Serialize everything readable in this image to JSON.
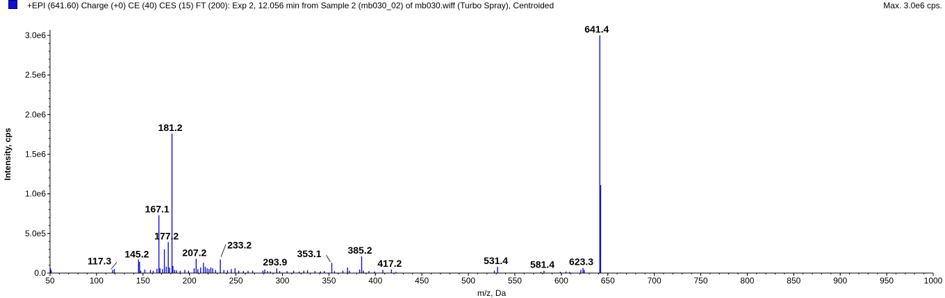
{
  "header": {
    "legend_color": "#1010d0",
    "title": "+EPI (641.60) Charge (+0) CE (40) CES (15) FT (200): Exp 2, 12.056 min from Sample 2 (mb030_02) of mb030.wiff (Turbo Spray), Centroided",
    "max_intensity": "Max. 3.0e6 cps."
  },
  "chart_data": {
    "type": "bar",
    "xlabel": "m/z, Da",
    "ylabel": "Intensity, cps",
    "xlim": [
      50,
      1000
    ],
    "ylim": [
      0,
      3000000
    ],
    "x_ticks": [
      50,
      100,
      150,
      200,
      250,
      300,
      350,
      400,
      450,
      500,
      550,
      600,
      650,
      700,
      750,
      800,
      850,
      900,
      950,
      1000
    ],
    "y_ticks": [
      {
        "value": 0,
        "label": "0.0"
      },
      {
        "value": 500000,
        "label": "5.0e5"
      },
      {
        "value": 1000000,
        "label": "1.0e6"
      },
      {
        "value": 1500000,
        "label": "1.5e6"
      },
      {
        "value": 2000000,
        "label": "2.0e6"
      },
      {
        "value": 2500000,
        "label": "2.5e6"
      },
      {
        "value": 3000000,
        "label": "3.0e6"
      }
    ],
    "color": "#1010d0",
    "peaks": [
      {
        "mz": 50.5,
        "intensity": 60000
      },
      {
        "mz": 51.3,
        "intensity": 35000
      },
      {
        "mz": 117.3,
        "intensity": 40000,
        "label": "117.3"
      },
      {
        "mz": 119.1,
        "intensity": 50000
      },
      {
        "mz": 145.2,
        "intensity": 170000,
        "label": "145.2"
      },
      {
        "mz": 146.3,
        "intensity": 140000
      },
      {
        "mz": 147.5,
        "intensity": 30000
      },
      {
        "mz": 152.0,
        "intensity": 45000
      },
      {
        "mz": 158.0,
        "intensity": 40000
      },
      {
        "mz": 161.0,
        "intensity": 30000
      },
      {
        "mz": 165.0,
        "intensity": 55000
      },
      {
        "mz": 167.1,
        "intensity": 730000,
        "label": "167.1"
      },
      {
        "mz": 168.3,
        "intensity": 60000
      },
      {
        "mz": 171.0,
        "intensity": 50000
      },
      {
        "mz": 173.0,
        "intensity": 300000
      },
      {
        "mz": 175.0,
        "intensity": 80000
      },
      {
        "mz": 177.2,
        "intensity": 390000,
        "label": "177.2"
      },
      {
        "mz": 178.5,
        "intensity": 70000
      },
      {
        "mz": 181.2,
        "intensity": 1760000,
        "label": "181.2"
      },
      {
        "mz": 182.2,
        "intensity": 90000
      },
      {
        "mz": 184.0,
        "intensity": 40000
      },
      {
        "mz": 186.0,
        "intensity": 35000
      },
      {
        "mz": 190.0,
        "intensity": 30000
      },
      {
        "mz": 195.0,
        "intensity": 40000
      },
      {
        "mz": 199.0,
        "intensity": 30000
      },
      {
        "mz": 205.0,
        "intensity": 60000
      },
      {
        "mz": 207.2,
        "intensity": 180000,
        "label": "207.2"
      },
      {
        "mz": 209.0,
        "intensity": 50000
      },
      {
        "mz": 212.0,
        "intensity": 70000
      },
      {
        "mz": 215.0,
        "intensity": 130000
      },
      {
        "mz": 217.0,
        "intensity": 80000
      },
      {
        "mz": 219.0,
        "intensity": 60000
      },
      {
        "mz": 221.0,
        "intensity": 50000
      },
      {
        "mz": 223.0,
        "intensity": 70000
      },
      {
        "mz": 225.0,
        "intensity": 60000
      },
      {
        "mz": 228.0,
        "intensity": 40000
      },
      {
        "mz": 233.2,
        "intensity": 170000,
        "label": "233.2"
      },
      {
        "mz": 237.0,
        "intensity": 40000
      },
      {
        "mz": 241.0,
        "intensity": 35000
      },
      {
        "mz": 245.0,
        "intensity": 50000
      },
      {
        "mz": 249.0,
        "intensity": 60000
      },
      {
        "mz": 253.0,
        "intensity": 30000
      },
      {
        "mz": 258.0,
        "intensity": 25000
      },
      {
        "mz": 263.0,
        "intensity": 30000
      },
      {
        "mz": 268.0,
        "intensity": 30000
      },
      {
        "mz": 279.0,
        "intensity": 30000
      },
      {
        "mz": 281.0,
        "intensity": 45000
      },
      {
        "mz": 284.0,
        "intensity": 25000
      },
      {
        "mz": 287.0,
        "intensity": 20000
      },
      {
        "mz": 293.9,
        "intensity": 60000,
        "label": "293.9"
      },
      {
        "mz": 297.0,
        "intensity": 25000
      },
      {
        "mz": 305.0,
        "intensity": 25000
      },
      {
        "mz": 312.0,
        "intensity": 30000
      },
      {
        "mz": 318.0,
        "intensity": 20000
      },
      {
        "mz": 323.0,
        "intensity": 30000
      },
      {
        "mz": 327.0,
        "intensity": 35000
      },
      {
        "mz": 335.0,
        "intensity": 25000
      },
      {
        "mz": 341.0,
        "intensity": 20000
      },
      {
        "mz": 345.0,
        "intensity": 25000
      },
      {
        "mz": 353.1,
        "intensity": 130000,
        "label": "353.1"
      },
      {
        "mz": 356.0,
        "intensity": 25000
      },
      {
        "mz": 365.0,
        "intensity": 30000
      },
      {
        "mz": 370.0,
        "intensity": 70000
      },
      {
        "mz": 372.0,
        "intensity": 30000
      },
      {
        "mz": 383.0,
        "intensity": 45000
      },
      {
        "mz": 385.2,
        "intensity": 210000,
        "label": "385.2"
      },
      {
        "mz": 387.0,
        "intensity": 30000
      },
      {
        "mz": 393.0,
        "intensity": 25000
      },
      {
        "mz": 399.0,
        "intensity": 20000
      },
      {
        "mz": 408.0,
        "intensity": 40000
      },
      {
        "mz": 417.2,
        "intensity": 45000,
        "label": "417.2"
      },
      {
        "mz": 422.0,
        "intensity": 15000
      },
      {
        "mz": 528.0,
        "intensity": 30000
      },
      {
        "mz": 531.4,
        "intensity": 80000,
        "label": "531.4"
      },
      {
        "mz": 578.0,
        "intensity": 15000
      },
      {
        "mz": 581.4,
        "intensity": 30000,
        "label": "581.4"
      },
      {
        "mz": 599.0,
        "intensity": 15000
      },
      {
        "mz": 605.0,
        "intensity": 20000
      },
      {
        "mz": 609.0,
        "intensity": 15000
      },
      {
        "mz": 621.0,
        "intensity": 40000
      },
      {
        "mz": 623.3,
        "intensity": 65000,
        "label": "623.3"
      },
      {
        "mz": 624.6,
        "intensity": 40000
      },
      {
        "mz": 641.4,
        "intensity": 3000000,
        "label": "641.4"
      },
      {
        "mz": 642.3,
        "intensity": 1110000
      }
    ],
    "annotated_peaks": [
      {
        "mz": 117.3,
        "label": "117.3",
        "intensity": 40000,
        "label_dx": -36,
        "label_dy": -8
      },
      {
        "mz": 145.2,
        "label": "145.2",
        "intensity": 170000,
        "label_dx": -20,
        "label_dy": -3
      },
      {
        "mz": 167.1,
        "label": "167.1",
        "intensity": 730000,
        "label_dx": -20,
        "label_dy": -4
      },
      {
        "mz": 177.2,
        "label": "177.2",
        "intensity": 390000,
        "label_dx": -20,
        "label_dy": -4
      },
      {
        "mz": 181.2,
        "label": "181.2",
        "intensity": 1760000,
        "label_dx": -20,
        "label_dy": -4
      },
      {
        "mz": 207.2,
        "label": "207.2",
        "intensity": 180000,
        "label_dx": -20,
        "label_dy": -4
      },
      {
        "mz": 233.2,
        "label": "233.2",
        "intensity": 170000,
        "label_dx": 10,
        "label_dy": -16
      },
      {
        "mz": 293.9,
        "label": "293.9",
        "intensity": 60000,
        "label_dx": -20,
        "label_dy": -4
      },
      {
        "mz": 353.1,
        "label": "353.1",
        "intensity": 130000,
        "label_dx": -50,
        "label_dy": -8
      },
      {
        "mz": 385.2,
        "label": "385.2",
        "intensity": 210000,
        "label_dx": -20,
        "label_dy": -4
      },
      {
        "mz": 417.2,
        "label": "417.2",
        "intensity": 45000,
        "label_dx": -20,
        "label_dy": -4
      },
      {
        "mz": 531.4,
        "label": "531.4",
        "intensity": 80000,
        "label_dx": -20,
        "label_dy": -4
      },
      {
        "mz": 581.4,
        "label": "581.4",
        "intensity": 30000,
        "label_dx": -20,
        "label_dy": -4
      },
      {
        "mz": 623.3,
        "label": "623.3",
        "intensity": 65000,
        "label_dx": -20,
        "label_dy": -4
      },
      {
        "mz": 641.4,
        "label": "641.4",
        "intensity": 3000000,
        "label_dx": -22,
        "label_dy": -4
      }
    ]
  }
}
